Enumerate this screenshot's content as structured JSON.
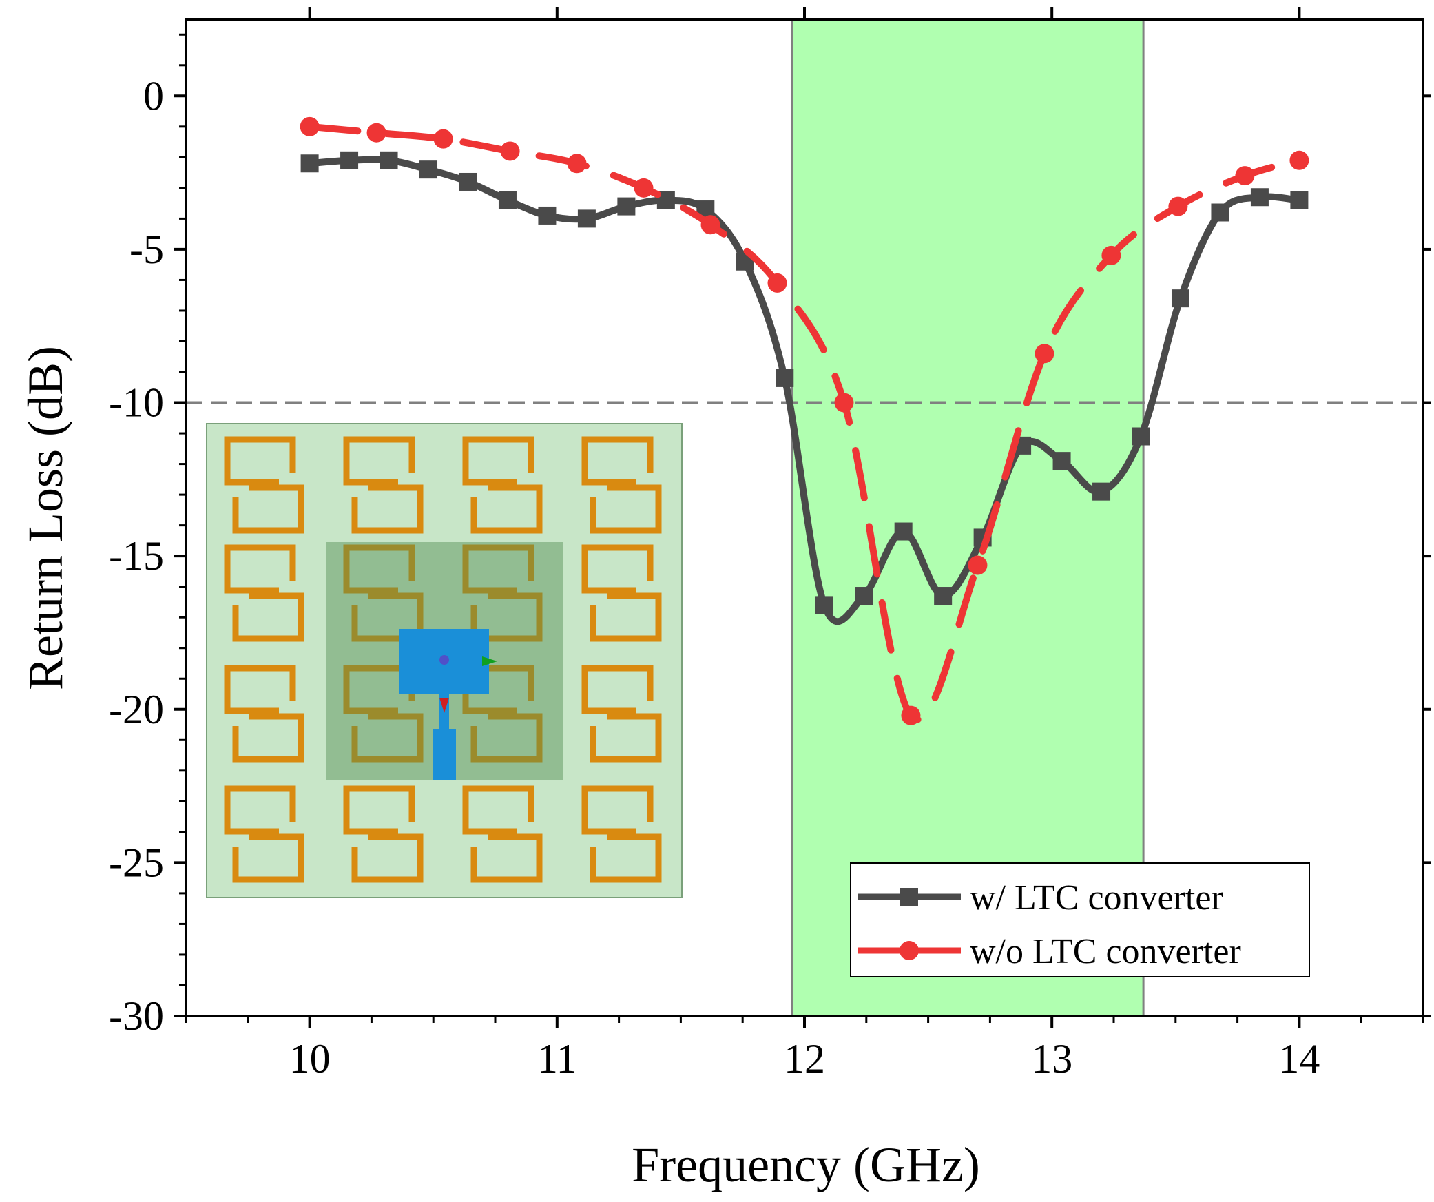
{
  "chart_data": {
    "type": "line",
    "title": "",
    "xlabel": "Frequency (GHz)",
    "ylabel": "Return Loss (dB)",
    "xlim": [
      9.5,
      14.5
    ],
    "ylim": [
      -30,
      2.5
    ],
    "x_ticks": [
      10,
      11,
      12,
      13,
      14
    ],
    "x_tick_labels": [
      "10",
      "11",
      "12",
      "13",
      "14"
    ],
    "y_ticks": [
      0,
      -5,
      -10,
      -15,
      -20,
      -25,
      -30
    ],
    "y_tick_labels": [
      "0",
      "-5",
      "-10",
      "-15",
      "-20",
      "-25",
      "-30"
    ],
    "threshold": -10,
    "band": [
      11.95,
      13.37
    ],
    "band_color": "#b0ffb0",
    "legend_position": "bottom-right",
    "inset": "antenna metasurface layout",
    "series": [
      {
        "name": "w/ LTC converter",
        "color": "#4a4a4a",
        "style": "solid",
        "marker": "square",
        "x": [
          10.0,
          10.16,
          10.32,
          10.48,
          10.64,
          10.8,
          10.96,
          11.12,
          11.28,
          11.44,
          11.6,
          11.76,
          11.92,
          12.08,
          12.24,
          12.4,
          12.56,
          12.72,
          12.88,
          13.04,
          13.2,
          13.36,
          13.52,
          13.68,
          13.84,
          14.0
        ],
        "values": [
          -2.2,
          -2.1,
          -2.1,
          -2.4,
          -2.8,
          -3.4,
          -3.9,
          -4.0,
          -3.6,
          -3.4,
          -3.7,
          -5.4,
          -9.2,
          -16.6,
          -16.3,
          -14.2,
          -16.3,
          -14.4,
          -11.4,
          -11.9,
          -12.9,
          -11.1,
          -6.6,
          -3.8,
          -3.3,
          -3.4
        ]
      },
      {
        "name": "w/o LTC converter",
        "color": "#ee3535",
        "style": "dashed",
        "marker": "circle",
        "x": [
          10.0,
          10.27,
          10.54,
          10.81,
          11.08,
          11.35,
          11.62,
          11.89,
          12.16,
          12.43,
          12.7,
          12.97,
          13.24,
          13.51,
          13.78,
          14.0
        ],
        "values": [
          -1.0,
          -1.2,
          -1.4,
          -1.8,
          -2.2,
          -3.0,
          -4.2,
          -6.1,
          -10.0,
          -20.2,
          -15.3,
          -8.4,
          -5.2,
          -3.6,
          -2.6,
          -2.1
        ]
      }
    ]
  }
}
